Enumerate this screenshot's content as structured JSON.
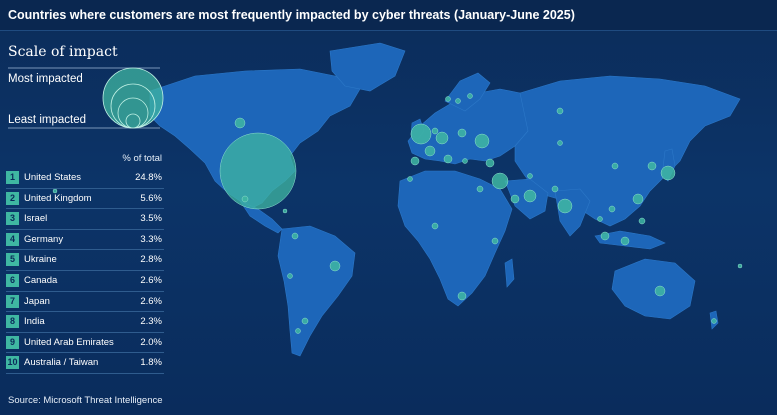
{
  "title": "Countries where customers are most frequently impacted by cyber threats  (January-June 2025)",
  "legend": {
    "title": "Scale of impact",
    "most": "Most impacted",
    "least": "Least impacted"
  },
  "table": {
    "header": "% of total",
    "rows": [
      {
        "rank": "1",
        "country": "United States",
        "pct": "24.8%"
      },
      {
        "rank": "2",
        "country": "United Kingdom",
        "pct": "5.6%"
      },
      {
        "rank": "3",
        "country": "Israel",
        "pct": "3.5%"
      },
      {
        "rank": "4",
        "country": "Germany",
        "pct": "3.3%"
      },
      {
        "rank": "5",
        "country": "Ukraine",
        "pct": "2.8%"
      },
      {
        "rank": "6",
        "country": "Canada",
        "pct": "2.6%"
      },
      {
        "rank": "7",
        "country": "Japan",
        "pct": "2.6%"
      },
      {
        "rank": "8",
        "country": "India",
        "pct": "2.3%"
      },
      {
        "rank": "9",
        "country": "United Arab Emirates",
        "pct": "2.0%"
      },
      {
        "rank": "10",
        "country": "Australia / Taiwan",
        "pct": "1.8%"
      }
    ]
  },
  "source": "Source: Microsoft Threat Intelligence",
  "colors": {
    "background": "#0b2c5a",
    "land": "#1d66b9",
    "bubble": "#3fb7a2",
    "rank_badge": "#3fb7a2"
  }
}
